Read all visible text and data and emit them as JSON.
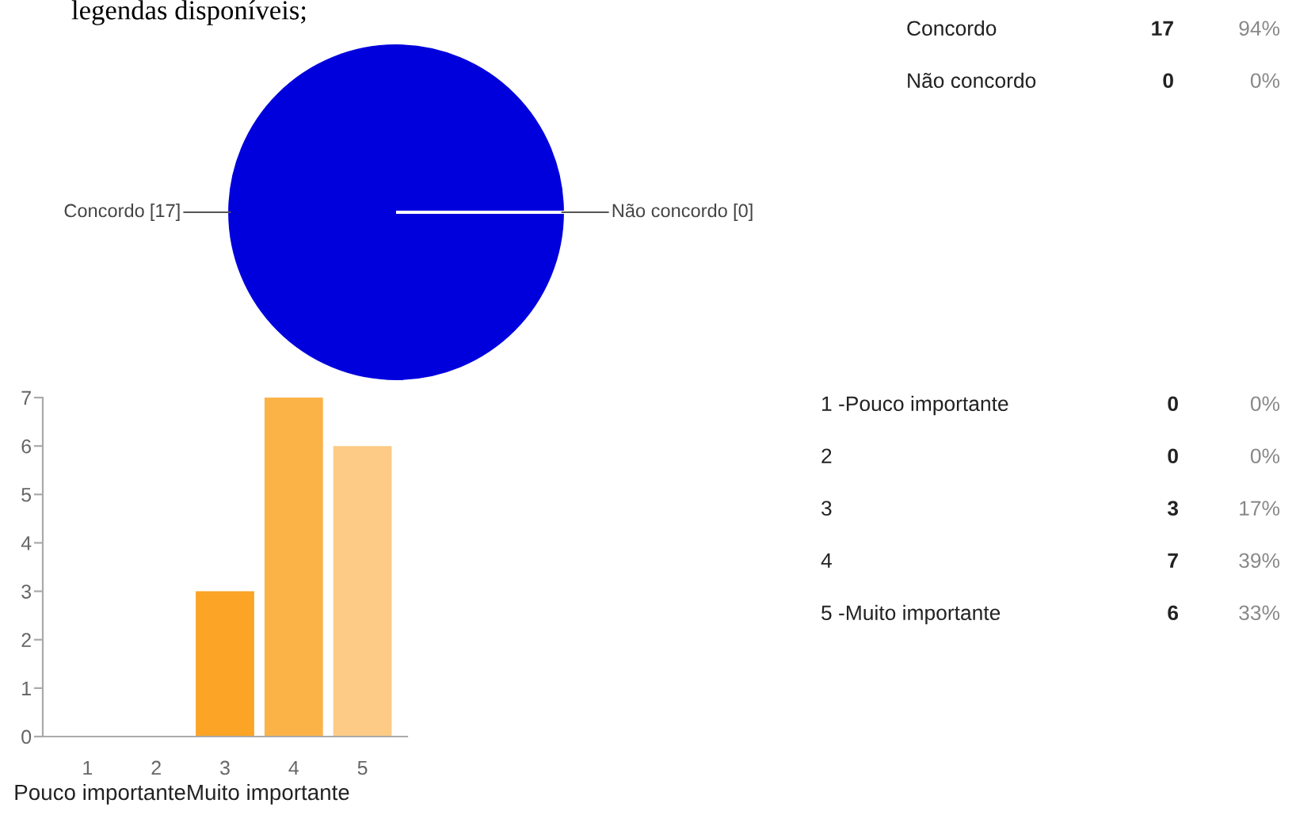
{
  "chart_data": [
    {
      "type": "pie",
      "title": "legendas disponíveis;",
      "categories": [
        "Concordo",
        "Não concordo"
      ],
      "values": [
        17,
        0
      ],
      "colors": [
        "#0000dd",
        "#dc3912"
      ],
      "value_labels": [
        "[17]",
        "[0]"
      ],
      "annotations": [
        "Concordo",
        "17",
        "94%",
        "Não concordo",
        "0",
        "0%"
      ]
    },
    {
      "type": "bar",
      "categories": [
        "1",
        "2",
        "3",
        "4",
        "5"
      ],
      "values": [
        0,
        0,
        3,
        7,
        6
      ],
      "colors": [
        "#f99d0a",
        "#f99d0a",
        "#fba425",
        "#fbb347",
        "#fdcb85"
      ],
      "xlabel": "Pouco importanteMuito importante",
      "ylim": [
        0,
        7
      ],
      "yticks": [
        0,
        1,
        2,
        3,
        4,
        5,
        6,
        7
      ],
      "grid": false,
      "annotations": [
        "1 -Pouco importante",
        "0",
        "0%",
        "2",
        "0",
        "0%",
        "3",
        "3",
        "17%",
        "4",
        "7",
        "39%",
        "5 -Muito importante",
        "6",
        "33%"
      ]
    }
  ]
}
